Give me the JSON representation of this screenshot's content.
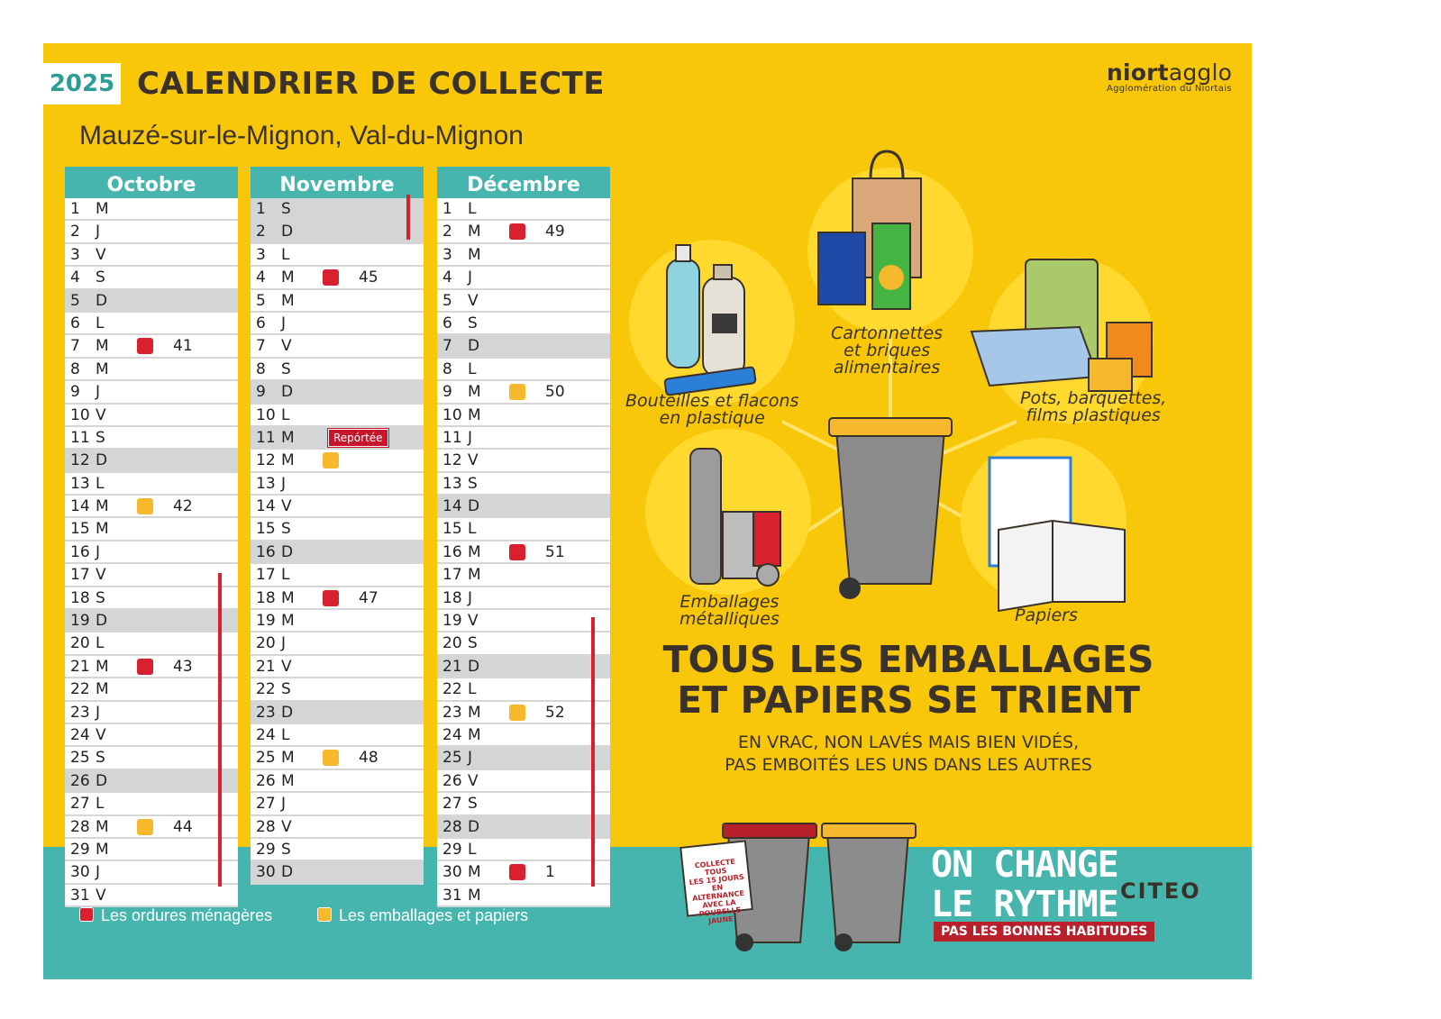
{
  "header": {
    "year": "2025",
    "title": "CALENDRIER DE COLLECTE",
    "subtitle": "Mauzé-sur-le-Mignon, Val-du-Mignon",
    "brand_bold": "niort",
    "brand_light": "agglo",
    "brand_sub": "Agglomération du Niortais"
  },
  "colors": {
    "ordures": "#d8202f",
    "emballages": "#f6b82d",
    "teal": "#45b5ad",
    "yellow": "#f9c709"
  },
  "months": [
    {
      "name": "Octobre",
      "days": [
        {
          "n": "1",
          "d": "M"
        },
        {
          "n": "2",
          "d": "J"
        },
        {
          "n": "3",
          "d": "V"
        },
        {
          "n": "4",
          "d": "S"
        },
        {
          "n": "5",
          "d": "D",
          "we": true
        },
        {
          "n": "6",
          "d": "L"
        },
        {
          "n": "7",
          "d": "M",
          "mark": "red",
          "week": "41"
        },
        {
          "n": "8",
          "d": "M"
        },
        {
          "n": "9",
          "d": "J"
        },
        {
          "n": "10",
          "d": "V"
        },
        {
          "n": "11",
          "d": "S"
        },
        {
          "n": "12",
          "d": "D",
          "we": true
        },
        {
          "n": "13",
          "d": "L"
        },
        {
          "n": "14",
          "d": "M",
          "mark": "yellow",
          "week": "42"
        },
        {
          "n": "15",
          "d": "M"
        },
        {
          "n": "16",
          "d": "J"
        },
        {
          "n": "17",
          "d": "V"
        },
        {
          "n": "18",
          "d": "S"
        },
        {
          "n": "19",
          "d": "D",
          "we": true
        },
        {
          "n": "20",
          "d": "L"
        },
        {
          "n": "21",
          "d": "M",
          "mark": "red",
          "week": "43"
        },
        {
          "n": "22",
          "d": "M"
        },
        {
          "n": "23",
          "d": "J"
        },
        {
          "n": "24",
          "d": "V"
        },
        {
          "n": "25",
          "d": "S"
        },
        {
          "n": "26",
          "d": "D",
          "we": true
        },
        {
          "n": "27",
          "d": "L"
        },
        {
          "n": "28",
          "d": "M",
          "mark": "yellow",
          "week": "44"
        },
        {
          "n": "29",
          "d": "M"
        },
        {
          "n": "30",
          "d": "J"
        },
        {
          "n": "31",
          "d": "V"
        }
      ]
    },
    {
      "name": "Novembre",
      "days": [
        {
          "n": "1",
          "d": "S",
          "we": true
        },
        {
          "n": "2",
          "d": "D",
          "we": true
        },
        {
          "n": "3",
          "d": "L"
        },
        {
          "n": "4",
          "d": "M",
          "mark": "red",
          "week": "45"
        },
        {
          "n": "5",
          "d": "M"
        },
        {
          "n": "6",
          "d": "J"
        },
        {
          "n": "7",
          "d": "V"
        },
        {
          "n": "8",
          "d": "S"
        },
        {
          "n": "9",
          "d": "D",
          "we": true
        },
        {
          "n": "10",
          "d": "L"
        },
        {
          "n": "11",
          "d": "M",
          "we": true,
          "note": "Repórtée"
        },
        {
          "n": "12",
          "d": "M",
          "mark": "yellow"
        },
        {
          "n": "13",
          "d": "J"
        },
        {
          "n": "14",
          "d": "V"
        },
        {
          "n": "15",
          "d": "S"
        },
        {
          "n": "16",
          "d": "D",
          "we": true
        },
        {
          "n": "17",
          "d": "L"
        },
        {
          "n": "18",
          "d": "M",
          "mark": "red",
          "week": "47"
        },
        {
          "n": "19",
          "d": "M"
        },
        {
          "n": "20",
          "d": "J"
        },
        {
          "n": "21",
          "d": "V"
        },
        {
          "n": "22",
          "d": "S"
        },
        {
          "n": "23",
          "d": "D",
          "we": true
        },
        {
          "n": "24",
          "d": "L"
        },
        {
          "n": "25",
          "d": "M",
          "mark": "yellow",
          "week": "48"
        },
        {
          "n": "26",
          "d": "M"
        },
        {
          "n": "27",
          "d": "J"
        },
        {
          "n": "28",
          "d": "V"
        },
        {
          "n": "29",
          "d": "S"
        },
        {
          "n": "30",
          "d": "D",
          "we": true
        }
      ]
    },
    {
      "name": "Décembre",
      "days": [
        {
          "n": "1",
          "d": "L"
        },
        {
          "n": "2",
          "d": "M",
          "mark": "red",
          "week": "49"
        },
        {
          "n": "3",
          "d": "M"
        },
        {
          "n": "4",
          "d": "J"
        },
        {
          "n": "5",
          "d": "V"
        },
        {
          "n": "6",
          "d": "S"
        },
        {
          "n": "7",
          "d": "D",
          "we": true
        },
        {
          "n": "8",
          "d": "L"
        },
        {
          "n": "9",
          "d": "M",
          "mark": "yellow",
          "week": "50"
        },
        {
          "n": "10",
          "d": "M"
        },
        {
          "n": "11",
          "d": "J"
        },
        {
          "n": "12",
          "d": "V"
        },
        {
          "n": "13",
          "d": "S"
        },
        {
          "n": "14",
          "d": "D",
          "we": true
        },
        {
          "n": "15",
          "d": "L"
        },
        {
          "n": "16",
          "d": "M",
          "mark": "red",
          "week": "51"
        },
        {
          "n": "17",
          "d": "M"
        },
        {
          "n": "18",
          "d": "J"
        },
        {
          "n": "19",
          "d": "V"
        },
        {
          "n": "20",
          "d": "S"
        },
        {
          "n": "21",
          "d": "D",
          "we": true
        },
        {
          "n": "22",
          "d": "L"
        },
        {
          "n": "23",
          "d": "M",
          "mark": "yellow",
          "week": "52"
        },
        {
          "n": "24",
          "d": "M"
        },
        {
          "n": "25",
          "d": "J",
          "we": true
        },
        {
          "n": "26",
          "d": "V"
        },
        {
          "n": "27",
          "d": "S"
        },
        {
          "n": "28",
          "d": "D",
          "we": true
        },
        {
          "n": "29",
          "d": "L"
        },
        {
          "n": "30",
          "d": "M",
          "mark": "red",
          "week": "1"
        },
        {
          "n": "31",
          "d": "M"
        }
      ]
    }
  ],
  "legend": {
    "ordures": "Les ordures ménagères",
    "emballages": "Les emballages et papiers"
  },
  "illustrations": {
    "bouteilles": "Bouteilles et flacons\nen plastique",
    "cartonnettes": "Cartonnettes\net briques\nalimentaires",
    "pots": "Pots, barquettes,\nfilms plastiques",
    "emballages": "Emballages\nmétalliques",
    "papiers": "Papiers"
  },
  "message": {
    "headline_1": "TOUS LES EMBALLAGES",
    "headline_2": "ET PAPIERS SE TRIENT",
    "sub_1": "EN VRAC, NON LAVÉS MAIS BIEN VIDÉS,",
    "sub_2": "PAS EMBOITÉS LES UNS DANS LES AUTRES"
  },
  "footer": {
    "collecte_tag": [
      "COLLECTE",
      "TOUS",
      "LES 15 JOURS",
      "EN ALTERNANCE",
      "AVEC LA",
      "POUBELLE JAUNE"
    ],
    "rythme_1": "ON CHANGE",
    "rythme_2": "LE RYTHME",
    "habitudes": "PAS LES BONNES HABITUDES",
    "citeo": "CITEO"
  }
}
